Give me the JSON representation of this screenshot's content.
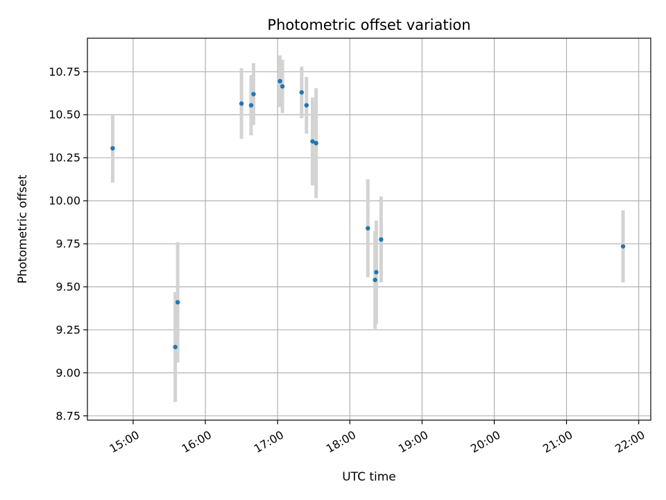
{
  "chart_data": {
    "type": "scatter",
    "title": "Photometric offset variation",
    "xlabel": "UTC time",
    "ylabel": "Photometric offset",
    "x_unit": "UTC time (HH:MM)",
    "xlim": [
      "14:22",
      "22:10"
    ],
    "ylim": [
      8.725,
      10.945
    ],
    "x_ticks": [
      "15:00",
      "16:00",
      "17:00",
      "18:00",
      "19:00",
      "20:00",
      "21:00",
      "22:00"
    ],
    "y_ticks": [
      "8.75",
      "9.00",
      "9.25",
      "9.50",
      "9.75",
      "10.00",
      "10.25",
      "10.50",
      "10.75"
    ],
    "grid": true,
    "legend": "none",
    "marker_color": "#1f77b4",
    "errorbar_color": "#d3d3d3",
    "series": [
      {
        "points": [
          {
            "x": "14:43",
            "y": 10.305,
            "err": 0.2
          },
          {
            "x": "15:35",
            "y": 9.15,
            "err": 0.32
          },
          {
            "x": "15:37",
            "y": 9.41,
            "err": 0.35
          },
          {
            "x": "16:30",
            "y": 10.565,
            "err": 0.205
          },
          {
            "x": "16:38",
            "y": 10.555,
            "err": 0.175
          },
          {
            "x": "16:40",
            "y": 10.62,
            "err": 0.18
          },
          {
            "x": "17:02",
            "y": 10.695,
            "err": 0.15
          },
          {
            "x": "17:04",
            "y": 10.665,
            "err": 0.155
          },
          {
            "x": "17:20",
            "y": 10.63,
            "err": 0.15
          },
          {
            "x": "17:24",
            "y": 10.555,
            "err": 0.165
          },
          {
            "x": "17:29",
            "y": 10.345,
            "err": 0.255
          },
          {
            "x": "17:32",
            "y": 10.335,
            "err": 0.32
          },
          {
            "x": "18:15",
            "y": 9.84,
            "err": 0.285
          },
          {
            "x": "18:21",
            "y": 9.54,
            "err": 0.285
          },
          {
            "x": "18:22",
            "y": 9.585,
            "err": 0.3
          },
          {
            "x": "18:26",
            "y": 9.775,
            "err": 0.25
          },
          {
            "x": "21:47",
            "y": 9.735,
            "err": 0.21
          }
        ]
      }
    ]
  }
}
